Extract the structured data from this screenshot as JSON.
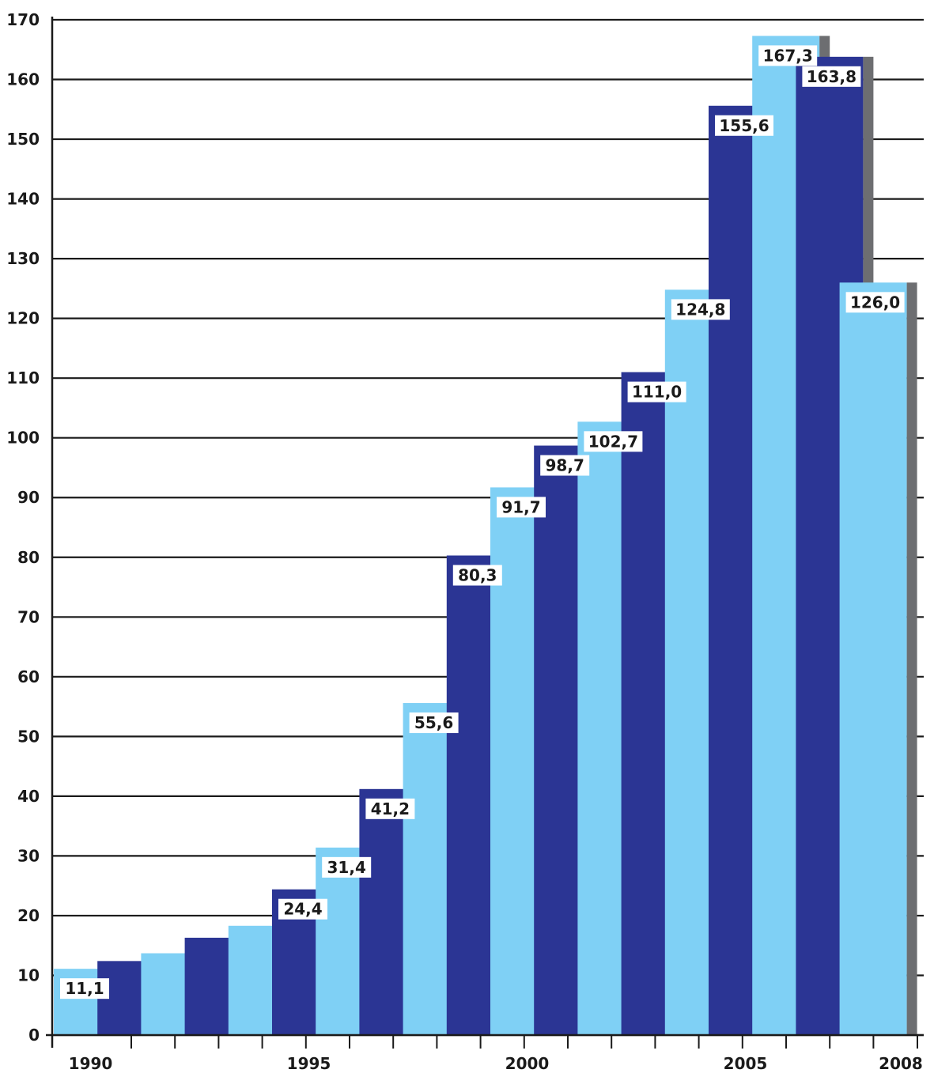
{
  "chart_data": {
    "type": "bar",
    "categories": [
      "1990",
      "1991",
      "1992",
      "1993",
      "1994",
      "1995",
      "1996",
      "1997",
      "1998",
      "1999",
      "2000",
      "2001",
      "2002",
      "2003",
      "2004",
      "2005",
      "2006",
      "2007",
      "2008"
    ],
    "values": [
      11.1,
      12.4,
      13.7,
      16.3,
      18.3,
      24.4,
      31.4,
      41.2,
      55.6,
      80.3,
      91.7,
      98.7,
      102.7,
      111.0,
      124.8,
      155.6,
      167.3,
      163.8,
      126.0
    ],
    "data_labels": [
      "11,1",
      null,
      null,
      null,
      null,
      "24,4",
      "31,4",
      "41,2",
      "55,6",
      "80,3",
      "91,7",
      "98,7",
      "102,7",
      "111,0",
      "124,8",
      "155,6",
      "167,3",
      "163,8",
      "126,0"
    ],
    "x_tick_labels": [
      "1990",
      "1995",
      "2000",
      "2005",
      "2008"
    ],
    "y_ticks": [
      0,
      10,
      20,
      30,
      40,
      50,
      60,
      70,
      80,
      90,
      100,
      110,
      120,
      130,
      140,
      150,
      160,
      170
    ],
    "ylim": [
      0,
      170
    ],
    "title": "",
    "xlabel": "",
    "ylabel": "",
    "grid": true,
    "colors": {
      "light_bar": "#7fd0f5",
      "dark_bar": "#2b3594",
      "shadow": "#6d6e71",
      "grid": "#1a1a1a",
      "label_bg": "#ffffff"
    }
  }
}
